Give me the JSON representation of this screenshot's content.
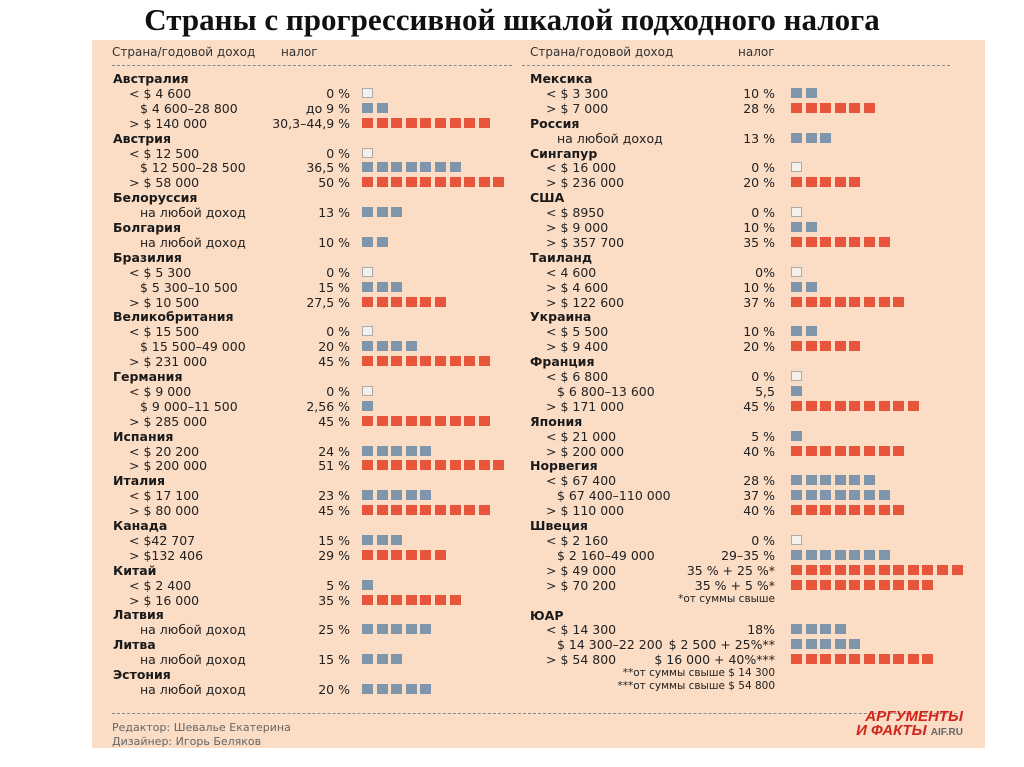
{
  "title": "Страны с прогрессивной шкалой подходного налога",
  "header": {
    "country_income": "Страна/годовой доход",
    "tax": "налог"
  },
  "colors": {
    "background": "#fbdcc5",
    "bracket": "#7e95ab",
    "top_bracket": "#e8553b"
  },
  "columns": [
    {
      "countries": [
        {
          "name": "Австралия",
          "rows": [
            {
              "income": "< $ 4 600",
              "tax": "0 %",
              "squares": 0
            },
            {
              "income": "$ 4 600–28 800",
              "tax": "до 9 %",
              "squares": 2
            },
            {
              "income": "> $ 140 000",
              "tax": "30,3–44,9 %",
              "squares": 9,
              "top": true
            }
          ]
        },
        {
          "name": "Австрия",
          "rows": [
            {
              "income": "< $ 12 500",
              "tax": "0 %",
              "squares": 0
            },
            {
              "income": "$ 12 500–28 500",
              "tax": "36,5 %",
              "squares": 7
            },
            {
              "income": "> $ 58 000",
              "tax": "50 %",
              "squares": 10,
              "top": true
            }
          ]
        },
        {
          "name": "Белоруссия",
          "rows": [
            {
              "income": "на любой доход",
              "tax": "13 %",
              "squares": 3
            }
          ]
        },
        {
          "name": "Болгария",
          "rows": [
            {
              "income": "на любой доход",
              "tax": "10 %",
              "squares": 2
            }
          ]
        },
        {
          "name": "Бразилия",
          "rows": [
            {
              "income": "< $ 5 300",
              "tax": "0 %",
              "squares": 0
            },
            {
              "income": "$ 5 300–10 500",
              "tax": "15 %",
              "squares": 3
            },
            {
              "income": "> $ 10 500",
              "tax": "27,5 %",
              "squares": 6,
              "top": true
            }
          ]
        },
        {
          "name": "Великобритания",
          "rows": [
            {
              "income": "< $ 15 500",
              "tax": "0 %",
              "squares": 0
            },
            {
              "income": "$ 15 500–49 000",
              "tax": "20 %",
              "squares": 4
            },
            {
              "income": "> $ 231 000",
              "tax": "45 %",
              "squares": 9,
              "top": true
            }
          ]
        },
        {
          "name": "Германия",
          "rows": [
            {
              "income": "< $ 9 000",
              "tax": "0 %",
              "squares": 0
            },
            {
              "income": "$ 9 000–11 500",
              "tax": "2,56 %",
              "squares": 1
            },
            {
              "income": "> $ 285 000",
              "tax": "45 %",
              "squares": 9,
              "top": true
            }
          ]
        },
        {
          "name": "Испания",
          "rows": [
            {
              "income": "< $ 20 200",
              "tax": "24 %",
              "squares": 5
            },
            {
              "income": "> $ 200 000",
              "tax": "51 %",
              "squares": 10,
              "top": true
            }
          ]
        },
        {
          "name": "Италия",
          "rows": [
            {
              "income": "< $ 17 100",
              "tax": "23 %",
              "squares": 5
            },
            {
              "income": "> $ 80 000",
              "tax": "45 %",
              "squares": 9,
              "top": true
            }
          ]
        },
        {
          "name": "Канада",
          "rows": [
            {
              "income": "< $42 707",
              "tax": "15 %",
              "squares": 3
            },
            {
              "income": "> $132 406",
              "tax": "29 %",
              "squares": 6,
              "top": true
            }
          ]
        },
        {
          "name": "Китай",
          "rows": [
            {
              "income": "< $ 2 400",
              "tax": "5 %",
              "squares": 1
            },
            {
              "income": "> $ 16 000",
              "tax": "35 %",
              "squares": 7,
              "top": true
            }
          ]
        },
        {
          "name": "Латвия",
          "rows": [
            {
              "income": "на любой доход",
              "tax": "25 %",
              "squares": 5
            }
          ]
        },
        {
          "name": "Литва",
          "rows": [
            {
              "income": "на любой доход",
              "tax": "15 %",
              "squares": 3
            }
          ]
        },
        {
          "name": "Эстония",
          "rows": [
            {
              "income": "на любой доход",
              "tax": "20 %",
              "squares": 5
            }
          ]
        }
      ]
    },
    {
      "countries": [
        {
          "name": "Мексика",
          "rows": [
            {
              "income": "< $ 3 300",
              "tax": "10 %",
              "squares": 2
            },
            {
              "income": "> $ 7 000",
              "tax": "28 %",
              "squares": 6,
              "top": true
            }
          ]
        },
        {
          "name": "Россия",
          "rows": [
            {
              "income": "на любой доход",
              "tax": "13 %",
              "squares": 3
            }
          ]
        },
        {
          "name": "Сингапур",
          "rows": [
            {
              "income": "< $ 16 000",
              "tax": "0 %",
              "squares": 0
            },
            {
              "income": "> $ 236 000",
              "tax": "20 %",
              "squares": 5,
              "top": true
            }
          ]
        },
        {
          "name": "США",
          "rows": [
            {
              "income": "< $ 8950",
              "tax": "0 %",
              "squares": 0
            },
            {
              "income": "> $ 9 000",
              "tax": "10 %",
              "squares": 2
            },
            {
              "income": "> $ 357 700",
              "tax": "35 %",
              "squares": 7,
              "top": true
            }
          ]
        },
        {
          "name": "Таиланд",
          "rows": [
            {
              "income": "< 4 600",
              "tax": "0%",
              "squares": 0
            },
            {
              "income": "> $ 4 600",
              "tax": "10 %",
              "squares": 2
            },
            {
              "income": "> $ 122 600",
              "tax": "37 %",
              "squares": 8,
              "top": true
            }
          ]
        },
        {
          "name": "Украина",
          "rows": [
            {
              "income": "< $ 5 500",
              "tax": "10 %",
              "squares": 2
            },
            {
              "income": "> $ 9 400",
              "tax": "20 %",
              "squares": 5,
              "top": true
            }
          ]
        },
        {
          "name": "Франция",
          "rows": [
            {
              "income": "< $ 6 800",
              "tax": "0 %",
              "squares": 0
            },
            {
              "income": "$ 6 800–13 600",
              "tax": "5,5",
              "squares": 1
            },
            {
              "income": "> $ 171 000",
              "tax": "45 %",
              "squares": 9,
              "top": true
            }
          ]
        },
        {
          "name": "Япония",
          "rows": [
            {
              "income": "< $ 21 000",
              "tax": "5 %",
              "squares": 1
            },
            {
              "income": "> $ 200 000",
              "tax": "40 %",
              "squares": 8,
              "top": true
            }
          ]
        },
        {
          "name": "Норвегия",
          "rows": [
            {
              "income": "< $ 67 400",
              "tax": "28 %",
              "squares": 6
            },
            {
              "income": "$ 67 400–110 000",
              "tax": "37 %",
              "squares": 7
            },
            {
              "income": "> $ 110 000",
              "tax": "40 %",
              "squares": 8,
              "top": true
            }
          ]
        },
        {
          "name": "Швеция",
          "rows": [
            {
              "income": "< $ 2 160",
              "tax": "0 %",
              "squares": 0
            },
            {
              "income": "$ 2 160–49 000",
              "tax": "29–35 %",
              "squares": 7
            },
            {
              "income": "> $ 49 000",
              "tax": "35 % + 25 %*",
              "squares": 12,
              "top": true
            },
            {
              "income": "> $ 70 200",
              "tax": "35 % + 5 %*",
              "squares": 10,
              "top": true
            }
          ],
          "notes": [
            "*от суммы свыше"
          ]
        },
        {
          "name": "ЮАР",
          "rows": [
            {
              "income": "< $ 14 300",
              "tax": "18%",
              "squares": 4
            },
            {
              "income": "$ 14 300–22 200",
              "tax": "$ 2 500 + 25%**",
              "squares": 5
            },
            {
              "income": "> $ 54 800",
              "tax": "$ 16 000 + 40%***",
              "squares": 10,
              "top": true
            }
          ],
          "notes": [
            "**от суммы свыше $ 14 300",
            "***от суммы свыше $ 54 800"
          ]
        }
      ]
    }
  ],
  "footer": {
    "editor": "Редактор: Шевалье Екатерина",
    "designer": "Дизайнер: Игорь Беляков"
  },
  "logo": {
    "line1": "АРГУМЕНТЫ",
    "line2": "И ФАКТЫ",
    "site": "AIF.RU"
  }
}
